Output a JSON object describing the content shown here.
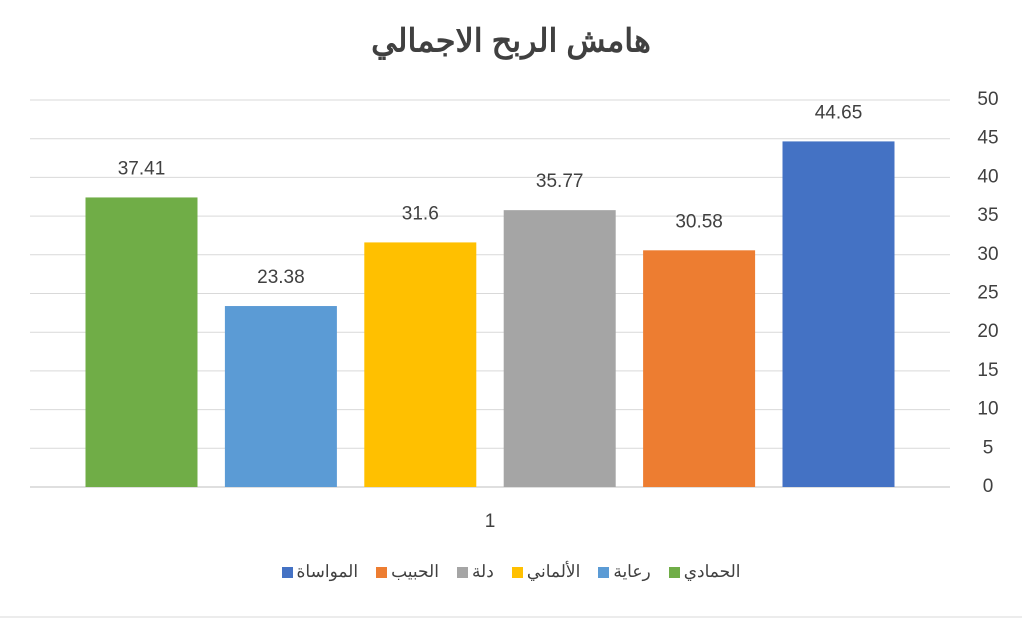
{
  "chart_data": {
    "type": "bar",
    "title": "هامش الربح الاجمالي",
    "categories": [
      "1"
    ],
    "series": [
      {
        "name": "الحمادي",
        "color": "#70ad47",
        "values": [
          37.41
        ]
      },
      {
        "name": "رعاية",
        "color": "#5b9bd5",
        "values": [
          23.38
        ]
      },
      {
        "name": "الألماني",
        "color": "#ffc000",
        "values": [
          31.6
        ]
      },
      {
        "name": "دلة",
        "color": "#a5a5a5",
        "values": [
          35.77
        ]
      },
      {
        "name": "الحبيب",
        "color": "#ed7d31",
        "values": [
          30.58
        ]
      },
      {
        "name": "المواساة",
        "color": "#4472c4",
        "values": [
          44.65
        ]
      }
    ],
    "ylim": [
      0,
      50
    ],
    "yticks": [
      0,
      5,
      10,
      15,
      20,
      25,
      30,
      35,
      40,
      45,
      50
    ],
    "grid": true,
    "legend": "bottom"
  }
}
